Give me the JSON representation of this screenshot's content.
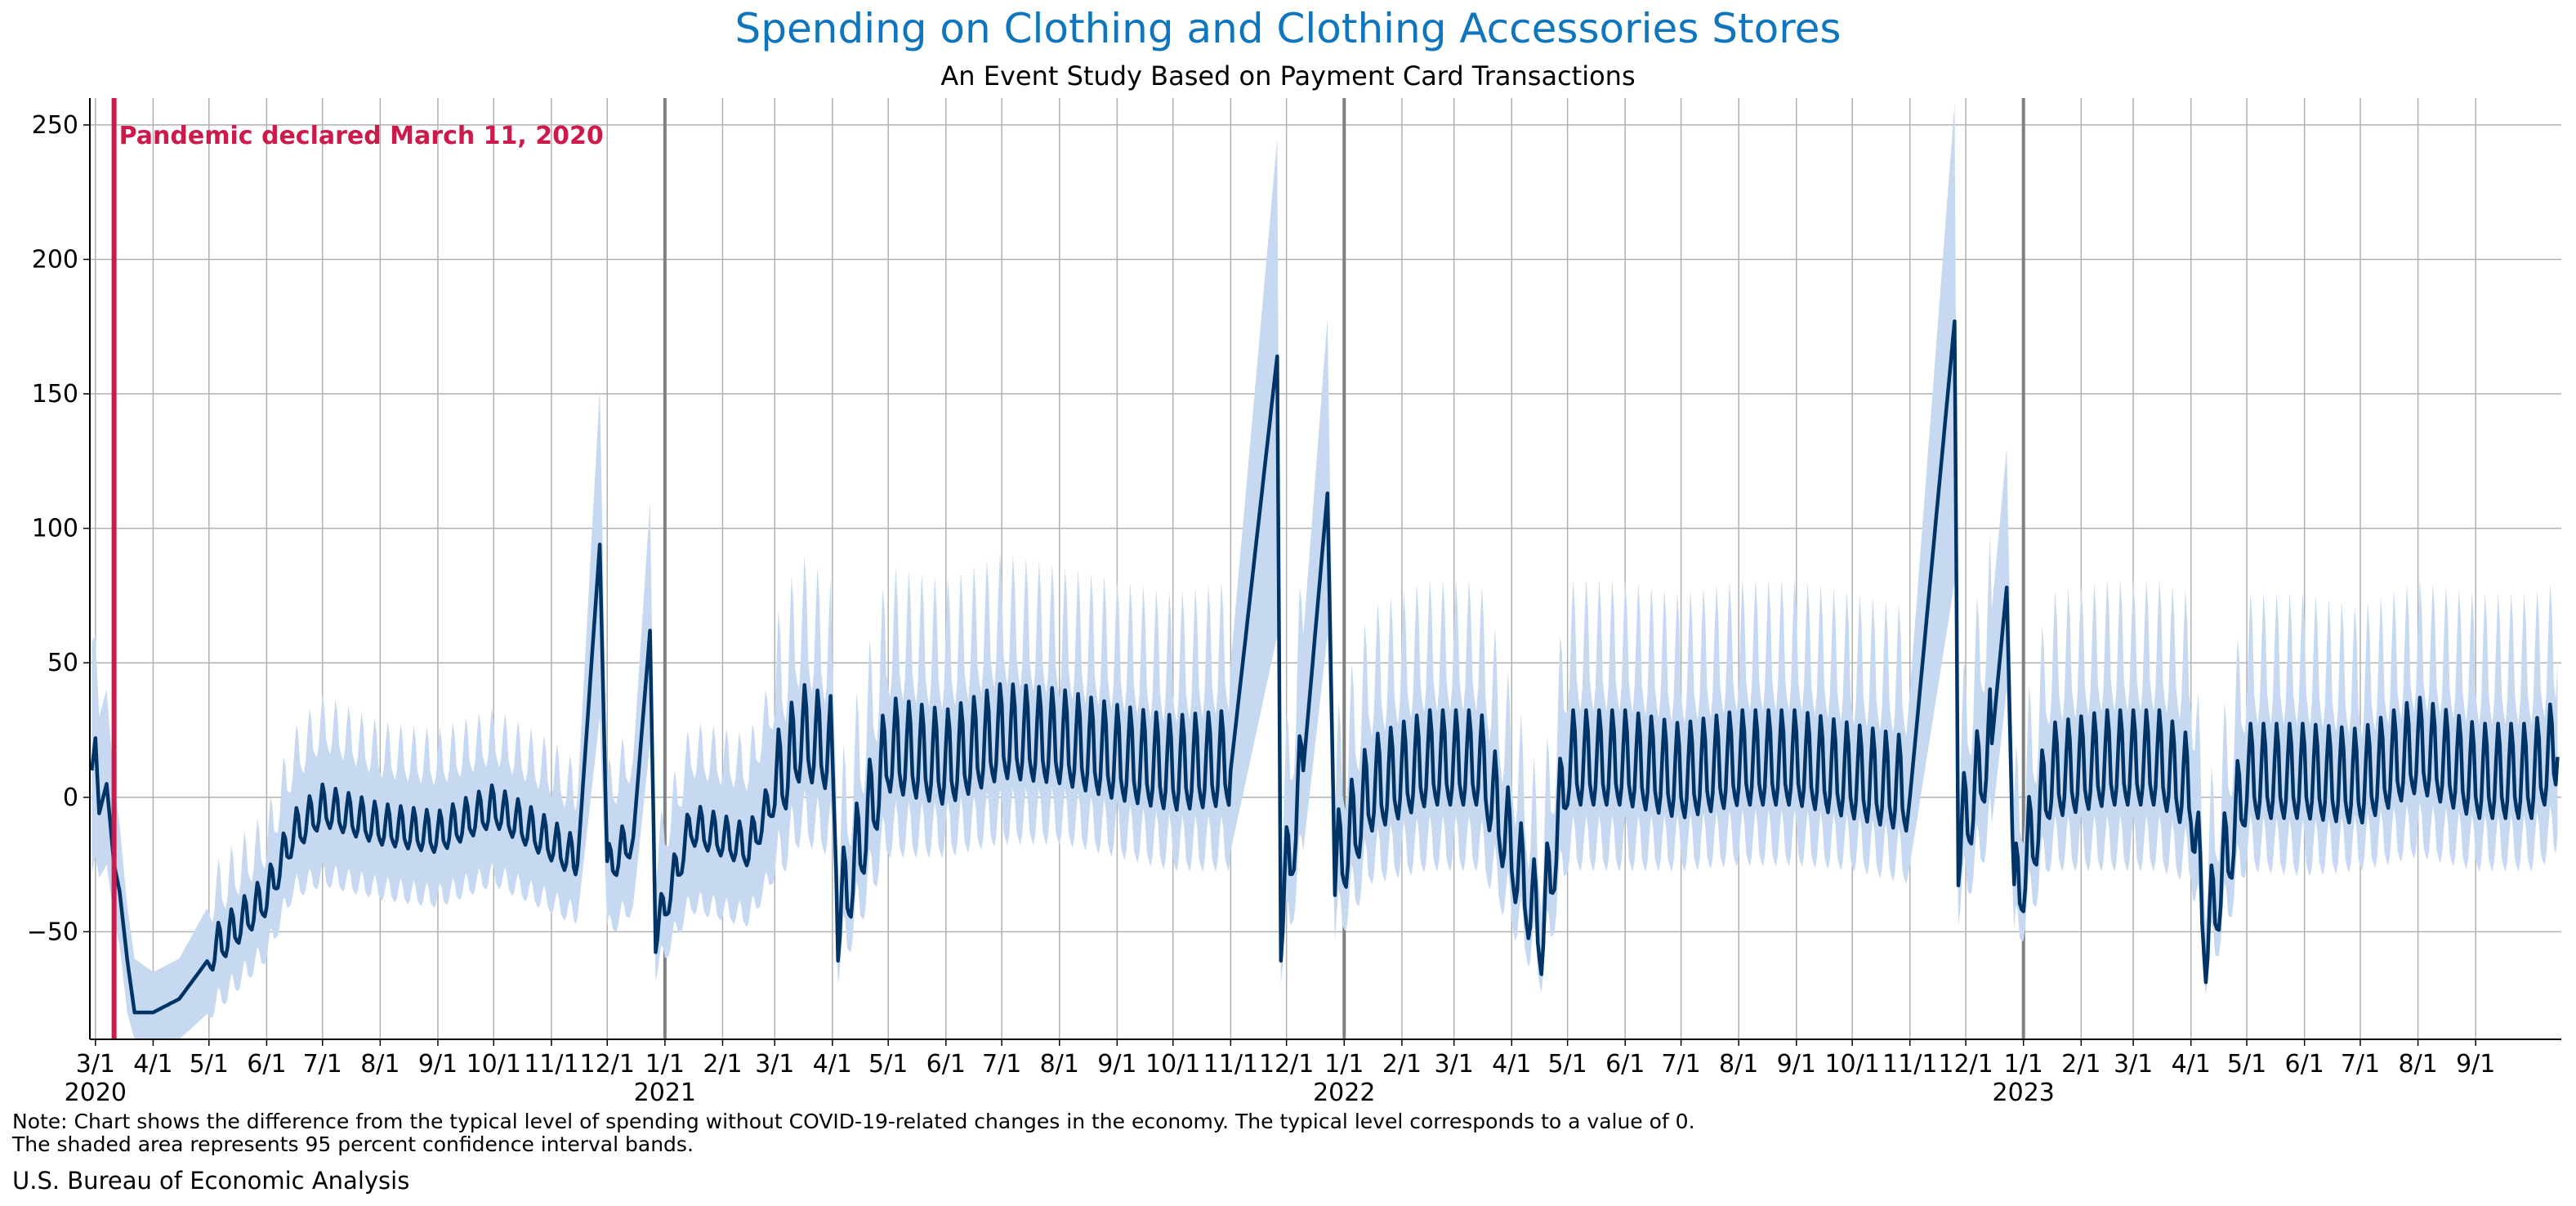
{
  "chart_data": {
    "type": "line",
    "title": "Spending on Clothing and Clothing Accessories Stores",
    "subtitle": "An Event Study Based on Payment Card Transactions",
    "xlabel": "",
    "ylabel": "",
    "x_range": [
      "2020-02-27",
      "2023-10-17"
    ],
    "ylim": [
      -90,
      260
    ],
    "yticks": [
      -50,
      0,
      50,
      100,
      150,
      200,
      250
    ],
    "grid": true,
    "legend": "none",
    "xticks": [
      {
        "date": "2020-03-01",
        "label": "3/1"
      },
      {
        "date": "2020-04-01",
        "label": "4/1"
      },
      {
        "date": "2020-05-01",
        "label": "5/1"
      },
      {
        "date": "2020-06-01",
        "label": "6/1"
      },
      {
        "date": "2020-07-01",
        "label": "7/1"
      },
      {
        "date": "2020-08-01",
        "label": "8/1"
      },
      {
        "date": "2020-09-01",
        "label": "9/1"
      },
      {
        "date": "2020-10-01",
        "label": "10/1"
      },
      {
        "date": "2020-11-01",
        "label": "11/1"
      },
      {
        "date": "2020-12-01",
        "label": "12/1"
      },
      {
        "date": "2021-01-01",
        "label": "1/1"
      },
      {
        "date": "2021-02-01",
        "label": "2/1"
      },
      {
        "date": "2021-03-01",
        "label": "3/1"
      },
      {
        "date": "2021-04-01",
        "label": "4/1"
      },
      {
        "date": "2021-05-01",
        "label": "5/1"
      },
      {
        "date": "2021-06-01",
        "label": "6/1"
      },
      {
        "date": "2021-07-01",
        "label": "7/1"
      },
      {
        "date": "2021-08-01",
        "label": "8/1"
      },
      {
        "date": "2021-09-01",
        "label": "9/1"
      },
      {
        "date": "2021-10-01",
        "label": "10/1"
      },
      {
        "date": "2021-11-01",
        "label": "11/1"
      },
      {
        "date": "2021-12-01",
        "label": "12/1"
      },
      {
        "date": "2022-01-01",
        "label": "1/1"
      },
      {
        "date": "2022-02-01",
        "label": "2/1"
      },
      {
        "date": "2022-03-01",
        "label": "3/1"
      },
      {
        "date": "2022-04-01",
        "label": "4/1"
      },
      {
        "date": "2022-05-01",
        "label": "5/1"
      },
      {
        "date": "2022-06-01",
        "label": "6/1"
      },
      {
        "date": "2022-07-01",
        "label": "7/1"
      },
      {
        "date": "2022-08-01",
        "label": "8/1"
      },
      {
        "date": "2022-09-01",
        "label": "9/1"
      },
      {
        "date": "2022-10-01",
        "label": "10/1"
      },
      {
        "date": "2022-11-01",
        "label": "11/1"
      },
      {
        "date": "2022-12-01",
        "label": "12/1"
      },
      {
        "date": "2023-01-01",
        "label": "1/1"
      },
      {
        "date": "2023-02-01",
        "label": "2/1"
      },
      {
        "date": "2023-03-01",
        "label": "3/1"
      },
      {
        "date": "2023-04-01",
        "label": "4/1"
      },
      {
        "date": "2023-05-01",
        "label": "5/1"
      },
      {
        "date": "2023-06-01",
        "label": "6/1"
      },
      {
        "date": "2023-07-01",
        "label": "7/1"
      },
      {
        "date": "2023-08-01",
        "label": "8/1"
      },
      {
        "date": "2023-09-01",
        "label": "9/1"
      }
    ],
    "year_labels": [
      {
        "date": "2020-03-01",
        "label": "2020"
      },
      {
        "date": "2021-01-01",
        "label": "2021"
      },
      {
        "date": "2022-01-01",
        "label": "2022"
      },
      {
        "date": "2023-01-01",
        "label": "2023"
      }
    ],
    "year_lines": [
      "2021-01-01",
      "2022-01-01",
      "2023-01-01"
    ],
    "event": {
      "date": "2020-03-11",
      "label": "Pandemic declared March 11, 2020",
      "color": "#cc1a4a"
    },
    "series": [
      {
        "color": "#003366",
        "band_color": "#c6d9f0",
        "note": "approximate key points read from the chart; daily values estimated",
        "points": [
          {
            "x": "2020-02-28",
            "y": 10,
            "lower": -28,
            "upper": 58
          },
          {
            "x": "2020-03-01",
            "y": 22,
            "lower": -22,
            "upper": 60
          },
          {
            "x": "2020-03-03",
            "y": -6,
            "lower": -30,
            "upper": 30
          },
          {
            "x": "2020-03-07",
            "y": 5,
            "lower": -25,
            "upper": 40
          },
          {
            "x": "2020-03-11",
            "y": -25,
            "lower": -45,
            "upper": 5
          },
          {
            "x": "2020-03-14",
            "y": -35,
            "lower": -55,
            "upper": -10
          },
          {
            "x": "2020-03-18",
            "y": -60,
            "lower": -80,
            "upper": -40
          },
          {
            "x": "2020-03-22",
            "y": -80,
            "lower": -90,
            "upper": -60
          },
          {
            "x": "2020-04-01",
            "y": -80,
            "lower": -90,
            "upper": -65
          },
          {
            "x": "2020-04-15",
            "y": -75,
            "lower": -90,
            "upper": -60
          },
          {
            "x": "2020-05-01",
            "y": -60,
            "lower": -80,
            "upper": -40
          },
          {
            "x": "2020-05-15",
            "y": -50,
            "lower": -70,
            "upper": -30
          },
          {
            "x": "2020-06-01",
            "y": -38,
            "lower": -58,
            "upper": -18
          },
          {
            "x": "2020-06-15",
            "y": -15,
            "lower": -35,
            "upper": 12
          },
          {
            "x": "2020-07-01",
            "y": -5,
            "lower": -30,
            "upper": 25
          },
          {
            "x": "2020-08-01",
            "y": -12,
            "lower": -35,
            "upper": 15
          },
          {
            "x": "2020-09-01",
            "y": -15,
            "lower": -38,
            "upper": 12
          },
          {
            "x": "2020-10-01",
            "y": -5,
            "lower": -30,
            "upper": 20
          },
          {
            "x": "2020-11-01",
            "y": -18,
            "lower": -40,
            "upper": 8
          },
          {
            "x": "2020-11-15",
            "y": -25,
            "lower": -45,
            "upper": 0
          },
          {
            "x": "2020-11-27",
            "y": 94,
            "lower": 30,
            "upper": 152
          },
          {
            "x": "2020-12-01",
            "y": -28,
            "lower": -50,
            "upper": 0
          },
          {
            "x": "2020-12-15",
            "y": -15,
            "lower": -40,
            "upper": 15
          },
          {
            "x": "2020-12-24",
            "y": 62,
            "lower": 20,
            "upper": 110
          },
          {
            "x": "2020-12-27",
            "y": -52,
            "lower": -65,
            "upper": -25
          },
          {
            "x": "2021-01-15",
            "y": -12,
            "lower": -40,
            "upper": 15
          },
          {
            "x": "2021-02-15",
            "y": -20,
            "lower": -45,
            "upper": 10
          },
          {
            "x": "2021-03-15",
            "y": 20,
            "lower": -10,
            "upper": 60
          },
          {
            "x": "2021-04-01",
            "y": 15,
            "lower": -15,
            "upper": 50
          },
          {
            "x": "2021-04-04",
            "y": -48,
            "lower": -62,
            "upper": -20
          },
          {
            "x": "2021-05-01",
            "y": 15,
            "lower": -15,
            "upper": 55
          },
          {
            "x": "2021-06-01",
            "y": 10,
            "lower": -15,
            "upper": 50
          },
          {
            "x": "2021-07-01",
            "y": 20,
            "lower": -10,
            "upper": 60
          },
          {
            "x": "2021-08-01",
            "y": 18,
            "lower": -10,
            "upper": 55
          },
          {
            "x": "2021-09-01",
            "y": 12,
            "lower": -15,
            "upper": 50
          },
          {
            "x": "2021-10-01",
            "y": 8,
            "lower": -20,
            "upper": 45
          },
          {
            "x": "2021-11-01",
            "y": 10,
            "lower": -20,
            "upper": 50
          },
          {
            "x": "2021-11-26",
            "y": 164,
            "lower": 60,
            "upper": 245
          },
          {
            "x": "2021-11-28",
            "y": -48,
            "lower": -62,
            "upper": -20
          },
          {
            "x": "2021-12-10",
            "y": 10,
            "lower": -20,
            "upper": 60
          },
          {
            "x": "2021-12-23",
            "y": 113,
            "lower": 60,
            "upper": 178
          },
          {
            "x": "2021-12-27",
            "y": -30,
            "lower": -50,
            "upper": 0
          },
          {
            "x": "2022-01-15",
            "y": 0,
            "lower": -25,
            "upper": 40
          },
          {
            "x": "2022-02-15",
            "y": 10,
            "lower": -20,
            "upper": 50
          },
          {
            "x": "2022-03-15",
            "y": 10,
            "lower": -20,
            "upper": 50
          },
          {
            "x": "2022-04-17",
            "y": -53,
            "lower": -65,
            "upper": -25
          },
          {
            "x": "2022-05-01",
            "y": 10,
            "lower": -20,
            "upper": 50
          },
          {
            "x": "2022-06-01",
            "y": 10,
            "lower": -20,
            "upper": 50
          },
          {
            "x": "2022-07-01",
            "y": 5,
            "lower": -20,
            "upper": 45
          },
          {
            "x": "2022-08-01",
            "y": 10,
            "lower": -18,
            "upper": 50
          },
          {
            "x": "2022-09-01",
            "y": 10,
            "lower": -18,
            "upper": 50
          },
          {
            "x": "2022-10-01",
            "y": 5,
            "lower": -20,
            "upper": 45
          },
          {
            "x": "2022-11-01",
            "y": 0,
            "lower": -25,
            "upper": 40
          },
          {
            "x": "2022-11-25",
            "y": 177,
            "lower": 80,
            "upper": 258
          },
          {
            "x": "2022-11-27",
            "y": -20,
            "lower": -40,
            "upper": 10
          },
          {
            "x": "2022-12-15",
            "y": 20,
            "lower": -10,
            "upper": 70
          },
          {
            "x": "2022-12-23",
            "y": 78,
            "lower": 40,
            "upper": 130
          },
          {
            "x": "2022-12-27",
            "y": -42,
            "lower": -55,
            "upper": -15
          },
          {
            "x": "2023-01-15",
            "y": 5,
            "lower": -20,
            "upper": 45
          },
          {
            "x": "2023-02-15",
            "y": 10,
            "lower": -20,
            "upper": 50
          },
          {
            "x": "2023-03-15",
            "y": 10,
            "lower": -20,
            "upper": 50
          },
          {
            "x": "2023-04-01",
            "y": 0,
            "lower": -25,
            "upper": 45
          },
          {
            "x": "2023-04-09",
            "y": -56,
            "lower": -66,
            "upper": -30
          },
          {
            "x": "2023-05-01",
            "y": 5,
            "lower": -20,
            "upper": 45
          },
          {
            "x": "2023-06-01",
            "y": 5,
            "lower": -22,
            "upper": 45
          },
          {
            "x": "2023-07-01",
            "y": 3,
            "lower": -20,
            "upper": 40
          },
          {
            "x": "2023-08-01",
            "y": 15,
            "lower": -15,
            "upper": 50
          },
          {
            "x": "2023-09-01",
            "y": 5,
            "lower": -20,
            "upper": 45
          },
          {
            "x": "2023-10-01",
            "y": 5,
            "lower": -20,
            "upper": 45
          },
          {
            "x": "2023-10-15",
            "y": 15,
            "lower": -15,
            "upper": 50
          }
        ]
      }
    ]
  },
  "notes": {
    "line1": "Note: Chart shows the difference from the typical level of spending without COVID-19-related changes in the economy. The typical level corresponds to a value of 0.",
    "line2": "The shaded area represents 95 percent confidence interval bands."
  },
  "source": "U.S. Bureau of Economic Analysis"
}
